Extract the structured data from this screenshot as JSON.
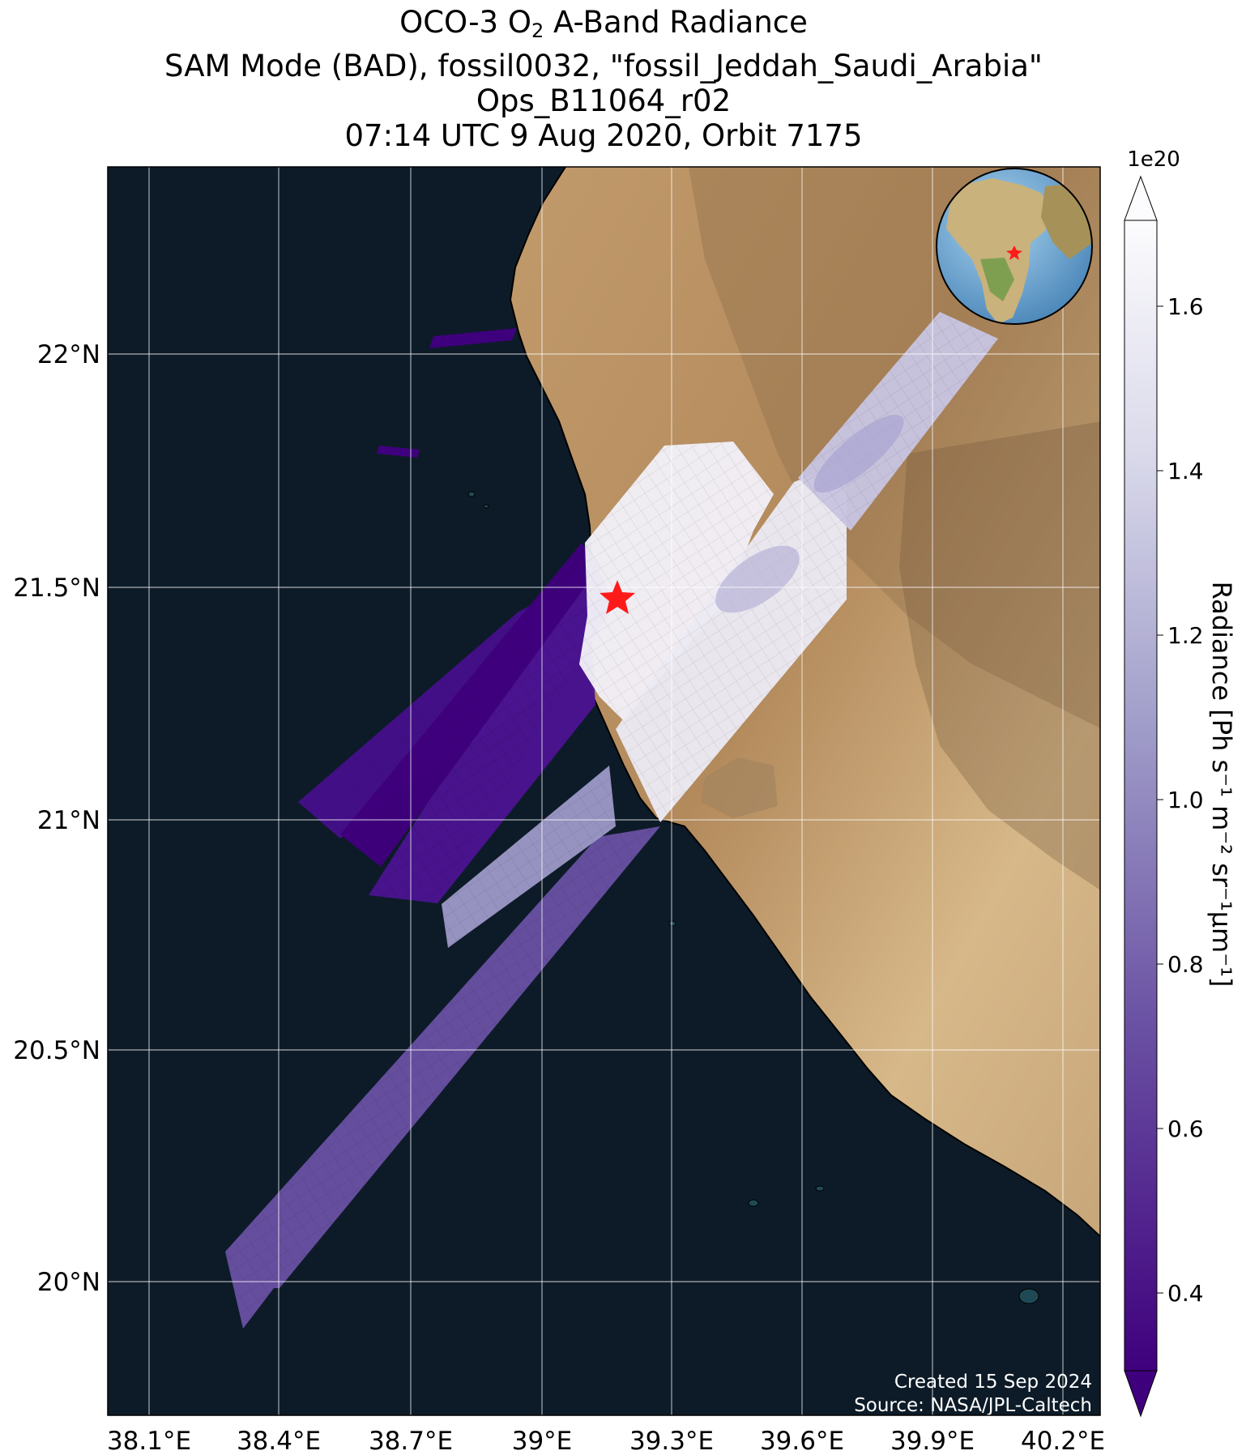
{
  "title": {
    "line1_prefix": "OCO-3 O",
    "line1_sub": "2",
    "line1_suffix": " A-Band Radiance",
    "line2": "SAM Mode (BAD), fossil0032, \"fossil_Jeddah_Saudi_Arabia\"",
    "line3": "Ops_B11064_r02",
    "line4": "07:14 UTC 9 Aug 2020, Orbit 7175"
  },
  "map": {
    "lon_ticks": [
      "38.1°E",
      "38.4°E",
      "38.7°E",
      "39°E",
      "39.3°E",
      "39.6°E",
      "39.9°E",
      "40.2°E"
    ],
    "lat_ticks": [
      "22°N",
      "21.5°N",
      "21°N",
      "20.5°N",
      "20°N"
    ],
    "target_marker": "red-star",
    "credit_line1": "Created 15 Sep 2024",
    "credit_line2": "Source: NASA/JPL-Caltech"
  },
  "colorbar": {
    "exponent": "1e20",
    "ticks": [
      "1.6",
      "1.4",
      "1.2",
      "1.0",
      "0.8",
      "0.6",
      "0.4"
    ],
    "label": "Radiance [Ph s⁻¹ m⁻² sr⁻¹μm⁻¹]",
    "colors": {
      "low": "#3f007d",
      "mid": "#807dba",
      "high": "#fcfbfd"
    }
  },
  "colors": {
    "ocean": "#0d1b28",
    "desert": "#c9a473",
    "star": "#ff1a1a"
  }
}
